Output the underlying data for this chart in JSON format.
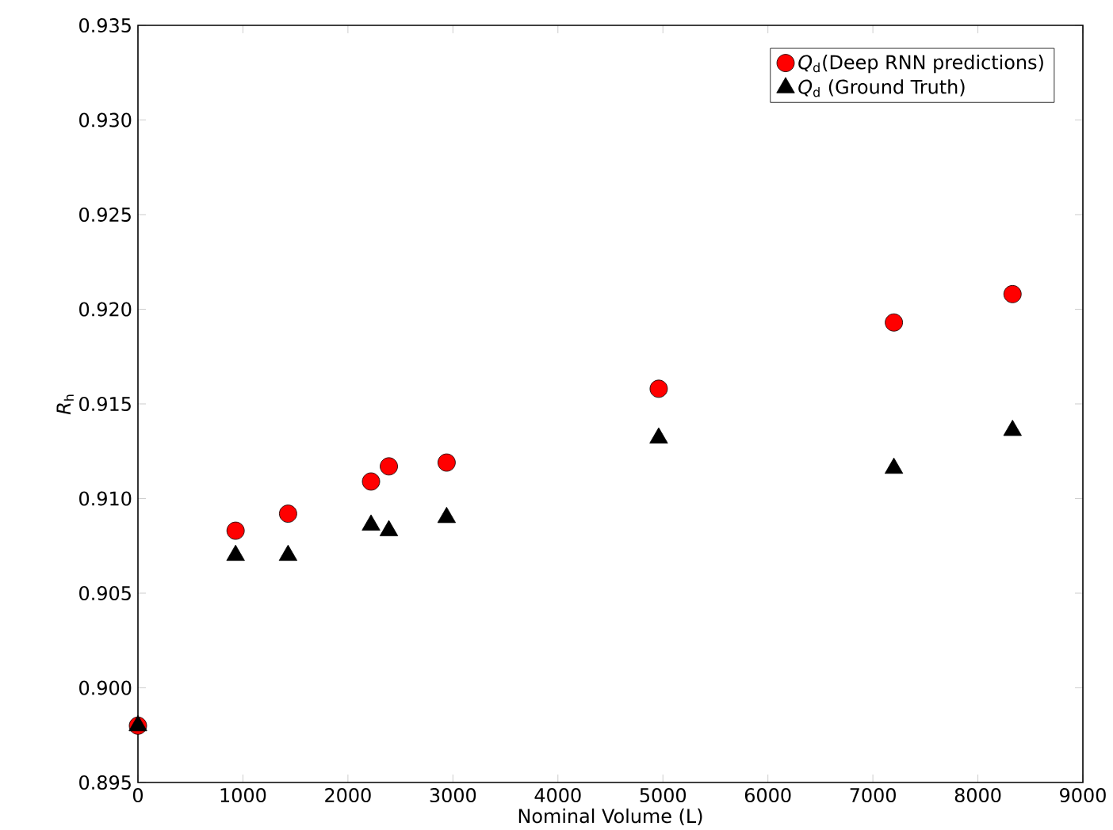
{
  "chart_data": {
    "type": "scatter",
    "xlabel": "Nominal Volume (L)",
    "ylabel": "*R*$_{h}$",
    "x": [
      0,
      930,
      1430,
      2220,
      2390,
      2940,
      4960,
      7200,
      8330
    ],
    "series": [
      {
        "name": "*Q*$_{d}$(Deep RNN predictions)",
        "color": "#ff0000",
        "marker": "circle",
        "values": [
          0.898,
          0.9083,
          0.9092,
          0.9109,
          0.9117,
          0.9119,
          0.9158,
          0.9193,
          0.9208
        ]
      },
      {
        "name": "*Q*$_{d}$ (Ground Truth)",
        "color": "#000000",
        "marker": "triangle",
        "values": [
          0.898,
          0.907,
          0.907,
          0.9086,
          0.9083,
          0.909,
          0.9132,
          0.9116,
          0.9136
        ]
      }
    ],
    "xlim": [
      0,
      9000
    ],
    "ylim": [
      0.895,
      0.935
    ],
    "xticks": [
      0,
      1000,
      2000,
      3000,
      4000,
      5000,
      6000,
      7000,
      8000,
      9000
    ],
    "yticks": [
      {
        "value": 0.895,
        "label": "0.895"
      },
      {
        "value": 0.9,
        "label": "0.900"
      },
      {
        "value": 0.905,
        "label": "0.905"
      },
      {
        "value": 0.91,
        "label": "0.910"
      },
      {
        "value": 0.915,
        "label": "0.915"
      },
      {
        "value": 0.92,
        "label": "0.920"
      },
      {
        "value": 0.925,
        "label": "0.925"
      },
      {
        "value": 0.93,
        "label": "0.930"
      },
      {
        "value": 0.935,
        "label": "0.935"
      }
    ],
    "grid": false,
    "legend": "top right"
  }
}
